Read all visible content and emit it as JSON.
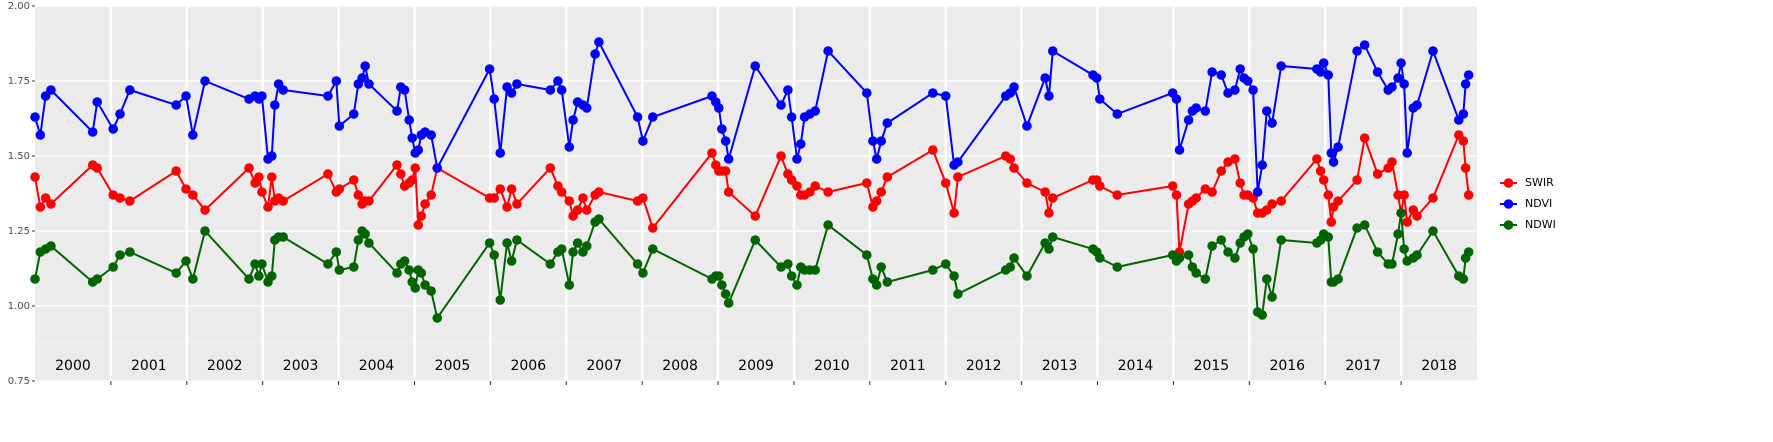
{
  "chart_data": {
    "type": "line",
    "x": [
      2000.0,
      2000.07,
      2000.14,
      2000.21,
      2000.76,
      2000.82,
      2001.03,
      2001.12,
      2001.25,
      2001.86,
      2001.99,
      2002.08,
      2002.24,
      2002.82,
      2002.9,
      2002.95,
      2002.99,
      2003.07,
      2003.12,
      2003.16,
      2003.21,
      2003.27,
      2003.86,
      2003.97,
      2004.01,
      2004.2,
      2004.26,
      2004.31,
      2004.35,
      2004.4,
      2004.77,
      2004.82,
      2004.87,
      2004.93,
      2004.97,
      2005.01,
      2005.05,
      2005.09,
      2005.14,
      2005.22,
      2005.3,
      2005.99,
      2006.05,
      2006.13,
      2006.22,
      2006.28,
      2006.35,
      2006.79,
      2006.89,
      2006.94,
      2007.04,
      2007.09,
      2007.15,
      2007.22,
      2007.27,
      2007.38,
      2007.43,
      2007.94,
      2008.01,
      2008.14,
      2008.92,
      2008.97,
      2009.01,
      2009.05,
      2009.1,
      2009.14,
      2009.49,
      2009.83,
      2009.92,
      2009.97,
      2010.04,
      2010.09,
      2010.14,
      2010.21,
      2010.28,
      2010.45,
      2010.96,
      2011.04,
      2011.09,
      2011.15,
      2011.23,
      2011.83,
      2012.0,
      2012.11,
      2012.16,
      2012.79,
      2012.85,
      2012.9,
      2013.07,
      2013.31,
      2013.36,
      2013.41,
      2013.94,
      2013.99,
      2014.03,
      2014.26,
      2014.99,
      2015.04,
      2015.08,
      2015.2,
      2015.25,
      2015.3,
      2015.42,
      2015.51,
      2015.63,
      2015.72,
      2015.81,
      2015.88,
      2015.93,
      2015.98,
      2016.05,
      2016.11,
      2016.17,
      2016.23,
      2016.3,
      2016.42,
      2016.89,
      2016.94,
      2016.98,
      2017.04,
      2017.08,
      2017.11,
      2017.17,
      2017.42,
      2017.52,
      2017.69,
      2017.83,
      2017.88,
      2017.96,
      2018.0,
      2018.04,
      2018.08,
      2018.16,
      2018.21,
      2018.42,
      2018.76,
      2018.82,
      2018.85,
      2018.89
    ],
    "series": [
      {
        "name": "SWIR",
        "color": "#ff0000",
        "values": [
          1.43,
          1.33,
          1.36,
          1.34,
          1.47,
          1.46,
          1.37,
          1.36,
          1.35,
          1.45,
          1.39,
          1.37,
          1.32,
          1.46,
          1.41,
          1.43,
          1.38,
          1.33,
          1.43,
          1.35,
          1.36,
          1.35,
          1.44,
          1.38,
          1.39,
          1.42,
          1.37,
          1.34,
          1.35,
          1.35,
          1.47,
          1.44,
          1.4,
          1.41,
          1.42,
          1.46,
          1.27,
          1.3,
          1.34,
          1.37,
          1.46,
          1.36,
          1.36,
          1.39,
          1.33,
          1.39,
          1.34,
          1.46,
          1.4,
          1.38,
          1.35,
          1.3,
          1.32,
          1.36,
          1.32,
          1.37,
          1.38,
          1.35,
          1.36,
          1.26,
          1.51,
          1.47,
          1.45,
          1.45,
          1.45,
          1.38,
          1.3,
          1.5,
          1.44,
          1.42,
          1.4,
          1.37,
          1.37,
          1.38,
          1.4,
          1.38,
          1.41,
          1.33,
          1.35,
          1.38,
          1.43,
          1.52,
          1.41,
          1.31,
          1.43,
          1.5,
          1.49,
          1.46,
          1.41,
          1.38,
          1.31,
          1.36,
          1.42,
          1.42,
          1.4,
          1.37,
          1.4,
          1.37,
          1.18,
          1.34,
          1.35,
          1.36,
          1.39,
          1.38,
          1.45,
          1.48,
          1.49,
          1.41,
          1.37,
          1.37,
          1.36,
          1.31,
          1.31,
          1.32,
          1.34,
          1.35,
          1.49,
          1.45,
          1.42,
          1.37,
          1.28,
          1.33,
          1.35,
          1.42,
          1.56,
          1.44,
          1.46,
          1.48,
          1.37,
          1.31,
          1.37,
          1.28,
          1.32,
          1.3,
          1.36,
          1.57,
          1.55,
          1.46,
          1.37
        ]
      },
      {
        "name": "NDVI",
        "color": "#0000ff",
        "values": [
          1.63,
          1.57,
          1.7,
          1.72,
          1.58,
          1.68,
          1.59,
          1.64,
          1.72,
          1.67,
          1.7,
          1.57,
          1.75,
          1.69,
          1.7,
          1.69,
          1.7,
          1.49,
          1.5,
          1.67,
          1.74,
          1.72,
          1.7,
          1.75,
          1.6,
          1.64,
          1.74,
          1.76,
          1.8,
          1.74,
          1.65,
          1.73,
          1.72,
          1.62,
          1.56,
          1.51,
          1.52,
          1.57,
          1.58,
          1.57,
          1.46,
          1.79,
          1.69,
          1.51,
          1.73,
          1.71,
          1.74,
          1.72,
          1.75,
          1.72,
          1.53,
          1.62,
          1.68,
          1.67,
          1.66,
          1.84,
          1.88,
          1.63,
          1.55,
          1.63,
          1.7,
          1.68,
          1.66,
          1.59,
          1.55,
          1.49,
          1.8,
          1.67,
          1.72,
          1.63,
          1.49,
          1.54,
          1.63,
          1.64,
          1.65,
          1.85,
          1.71,
          1.55,
          1.49,
          1.55,
          1.61,
          1.71,
          1.7,
          1.47,
          1.48,
          1.7,
          1.71,
          1.73,
          1.6,
          1.76,
          1.7,
          1.85,
          1.77,
          1.76,
          1.69,
          1.64,
          1.71,
          1.69,
          1.52,
          1.62,
          1.65,
          1.66,
          1.65,
          1.78,
          1.77,
          1.71,
          1.72,
          1.79,
          1.76,
          1.75,
          1.72,
          1.38,
          1.47,
          1.65,
          1.61,
          1.8,
          1.79,
          1.78,
          1.81,
          1.77,
          1.51,
          1.48,
          1.53,
          1.85,
          1.87,
          1.78,
          1.72,
          1.73,
          1.76,
          1.81,
          1.74,
          1.51,
          1.66,
          1.67,
          1.85,
          1.62,
          1.64,
          1.74,
          1.77
        ]
      },
      {
        "name": "NDWI",
        "color": "#006400",
        "values": [
          1.09,
          1.18,
          1.19,
          1.2,
          1.08,
          1.09,
          1.13,
          1.17,
          1.18,
          1.11,
          1.15,
          1.09,
          1.25,
          1.09,
          1.14,
          1.1,
          1.14,
          1.08,
          1.1,
          1.22,
          1.23,
          1.23,
          1.14,
          1.18,
          1.12,
          1.13,
          1.22,
          1.25,
          1.24,
          1.21,
          1.11,
          1.14,
          1.15,
          1.12,
          1.08,
          1.06,
          1.12,
          1.11,
          1.07,
          1.05,
          0.96,
          1.21,
          1.17,
          1.02,
          1.21,
          1.15,
          1.22,
          1.14,
          1.18,
          1.19,
          1.07,
          1.18,
          1.21,
          1.18,
          1.2,
          1.28,
          1.29,
          1.14,
          1.11,
          1.19,
          1.09,
          1.1,
          1.1,
          1.07,
          1.04,
          1.01,
          1.22,
          1.13,
          1.14,
          1.1,
          1.07,
          1.13,
          1.12,
          1.12,
          1.12,
          1.27,
          1.17,
          1.09,
          1.07,
          1.13,
          1.08,
          1.12,
          1.14,
          1.1,
          1.04,
          1.12,
          1.13,
          1.16,
          1.1,
          1.21,
          1.19,
          1.23,
          1.19,
          1.18,
          1.16,
          1.13,
          1.17,
          1.15,
          1.16,
          1.17,
          1.13,
          1.11,
          1.09,
          1.2,
          1.22,
          1.18,
          1.16,
          1.21,
          1.23,
          1.24,
          1.19,
          0.98,
          0.97,
          1.09,
          1.03,
          1.22,
          1.21,
          1.22,
          1.24,
          1.23,
          1.08,
          1.08,
          1.09,
          1.26,
          1.27,
          1.18,
          1.14,
          1.14,
          1.24,
          1.31,
          1.19,
          1.15,
          1.16,
          1.17,
          1.25,
          1.1,
          1.09,
          1.16,
          1.18
        ]
      }
    ],
    "xlim": [
      2000,
      2019
    ],
    "xticks": [
      2001,
      2002,
      2003,
      2004,
      2005,
      2006,
      2007,
      2008,
      2009,
      2010,
      2011,
      2012,
      2013,
      2014,
      2015,
      2016,
      2017,
      2018
    ],
    "year_labels": [
      "2000",
      "2001",
      "2002",
      "2003",
      "2004",
      "2005",
      "2006",
      "2007",
      "2008",
      "2009",
      "2010",
      "2011",
      "2012",
      "2013",
      "2014",
      "2015",
      "2016",
      "2017",
      "2018"
    ],
    "ylim": [
      0.75,
      2.0
    ],
    "yticks": [
      {
        "value": 0.75,
        "label": "0.75"
      },
      {
        "value": 1,
        "label": "1.00"
      },
      {
        "value": 1.25,
        "label": "1.25"
      },
      {
        "value": 1.5,
        "label": "1.50"
      },
      {
        "value": 1.75,
        "label": "1.75"
      },
      {
        "value": 2,
        "label": "2.00"
      }
    ],
    "grid": true,
    "legend": "right"
  }
}
